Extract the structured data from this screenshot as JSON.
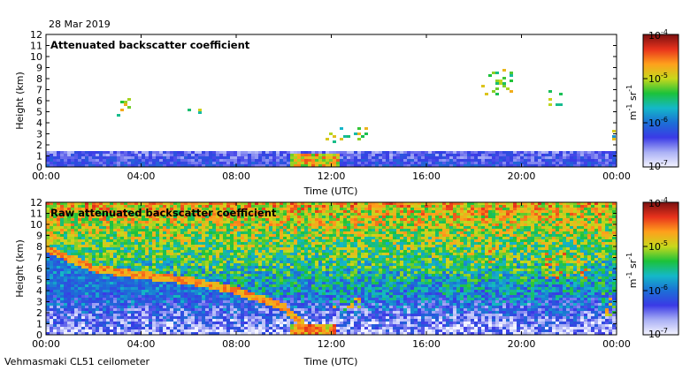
{
  "date_label": "28 Mar 2019",
  "footer_label": "Vehmasmaki CL51 ceilometer",
  "colors": {
    "cmap": [
      "#f4f4ff",
      "#aab0f5",
      "#3a3ae6",
      "#1c6fd6",
      "#14b8c8",
      "#1cc23a",
      "#c8d81c",
      "#ffa01c",
      "#e8321c",
      "#7a1010"
    ]
  },
  "chart_data": [
    {
      "type": "heatmap",
      "title": "Attenuated backscatter coefficient",
      "xlabel": "Time (UTC)",
      "ylabel": "Height (km)",
      "x_ticks": [
        "00:00",
        "04:00",
        "08:00",
        "12:00",
        "16:00",
        "20:00",
        "00:00"
      ],
      "x_tick_hours": [
        0,
        4,
        8,
        12,
        16,
        20,
        24
      ],
      "y_ticks": [
        0,
        1,
        2,
        3,
        4,
        5,
        6,
        7,
        8,
        9,
        10,
        11,
        12
      ],
      "xlim_hours": [
        0,
        24
      ],
      "ylim_km": [
        0,
        12
      ],
      "colorbar": {
        "scale": "log",
        "range": [
          1e-07,
          0.0001
        ],
        "tick_values": [
          1e-07,
          1e-06,
          1e-05,
          0.0001
        ],
        "tick_labels": [
          {
            "base": "10",
            "exp": "-7"
          },
          {
            "base": "10",
            "exp": "-6"
          },
          {
            "base": "10",
            "exp": "-5"
          },
          {
            "base": "10",
            "exp": "-4"
          }
        ],
        "label": {
          "p1": "m",
          "e1": "-1",
          "p2": " sr",
          "e2": "-1"
        }
      },
      "layers": [
        {
          "kind": "surface",
          "top_km": 1.5,
          "level": 0.25
        },
        {
          "kind": "band",
          "t0": 10.3,
          "t1": 12.3,
          "h0": 0.0,
          "h1": 1.2,
          "level": 0.72
        },
        {
          "kind": "spots",
          "t0": 11.8,
          "t1": 13.6,
          "h0": 2.2,
          "h1": 3.5,
          "level": 0.6
        },
        {
          "kind": "spots",
          "t0": 2.8,
          "t1": 3.6,
          "h0": 4.4,
          "h1": 6.2,
          "level": 0.62
        },
        {
          "kind": "spots",
          "t0": 6.0,
          "t1": 6.5,
          "h0": 4.6,
          "h1": 5.2,
          "level": 0.6
        },
        {
          "kind": "spots",
          "t0": 18.3,
          "t1": 19.6,
          "h0": 6.5,
          "h1": 8.8,
          "level": 0.6
        },
        {
          "kind": "spots",
          "t0": 21.2,
          "t1": 21.7,
          "h0": 5.4,
          "h1": 7.2,
          "level": 0.62
        },
        {
          "kind": "spots",
          "t0": 23.6,
          "t1": 23.9,
          "h0": 2.0,
          "h1": 3.4,
          "level": 0.55
        }
      ]
    },
    {
      "type": "heatmap",
      "title": "Raw attenuated backscatter coefficient",
      "xlabel": "Time (UTC)",
      "ylabel": "Height (km)",
      "x_ticks": [
        "00:00",
        "04:00",
        "08:00",
        "12:00",
        "16:00",
        "20:00",
        "00:00"
      ],
      "x_tick_hours": [
        0,
        4,
        8,
        12,
        16,
        20,
        24
      ],
      "y_ticks": [
        0,
        1,
        2,
        3,
        4,
        5,
        6,
        7,
        8,
        9,
        10,
        11,
        12
      ],
      "xlim_hours": [
        0,
        24
      ],
      "ylim_km": [
        0,
        12
      ],
      "colorbar": {
        "scale": "log",
        "range": [
          1e-07,
          0.0001
        ],
        "tick_values": [
          1e-07,
          1e-06,
          1e-05,
          0.0001
        ],
        "tick_labels": [
          {
            "base": "10",
            "exp": "-7"
          },
          {
            "base": "10",
            "exp": "-6"
          },
          {
            "base": "10",
            "exp": "-5"
          },
          {
            "base": "10",
            "exp": "-4"
          }
        ],
        "label": {
          "p1": "m",
          "e1": "-1",
          "p2": " sr",
          "e2": "-1"
        }
      },
      "noise_base_levels": [
        {
          "h": 0.0,
          "level": 0.1
        },
        {
          "h": 2.0,
          "level": 0.22
        },
        {
          "h": 4.0,
          "level": 0.4
        },
        {
          "h": 7.0,
          "level": 0.55
        },
        {
          "h": 10.0,
          "level": 0.66
        },
        {
          "h": 12.0,
          "level": 0.74
        }
      ],
      "cloud_layer_track": [
        {
          "t": 0.0,
          "h": 7.8
        },
        {
          "t": 2.0,
          "h": 6.0
        },
        {
          "t": 4.0,
          "h": 5.4
        },
        {
          "t": 6.0,
          "h": 4.9
        },
        {
          "t": 8.0,
          "h": 4.0
        },
        {
          "t": 10.0,
          "h": 2.5
        },
        {
          "t": 11.0,
          "h": 0.6
        }
      ],
      "cloud_layer_level": 0.78,
      "layers": [
        {
          "kind": "band",
          "t0": 10.3,
          "t1": 12.2,
          "h0": 0.0,
          "h1": 1.0,
          "level": 0.75
        },
        {
          "kind": "spots",
          "t0": 12.0,
          "t1": 13.5,
          "h0": 2.2,
          "h1": 3.5,
          "level": 0.7
        },
        {
          "kind": "spots",
          "t0": 17.6,
          "t1": 19.6,
          "h0": 6.5,
          "h1": 8.0,
          "level": 0.68
        },
        {
          "kind": "spots",
          "t0": 21.0,
          "t1": 22.8,
          "h0": 5.0,
          "h1": 7.5,
          "level": 0.72
        },
        {
          "kind": "spots",
          "t0": 23.3,
          "t1": 24.0,
          "h0": 1.8,
          "h1": 3.8,
          "level": 0.62
        }
      ]
    }
  ]
}
